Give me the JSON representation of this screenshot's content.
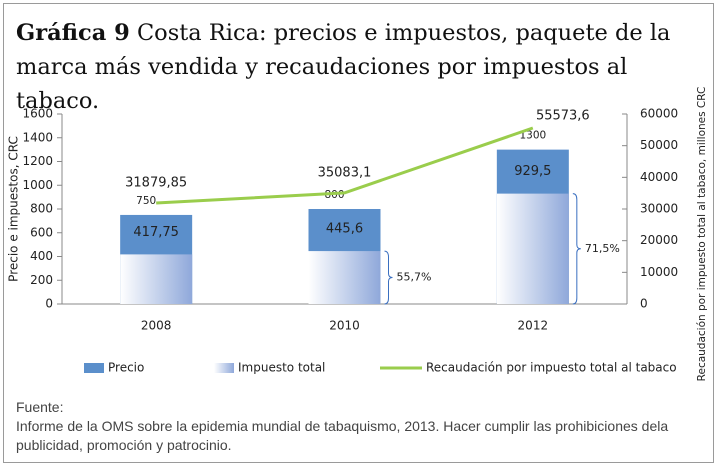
{
  "chart_data": {
    "type": "bar",
    "title_label": "Gráfica 9",
    "title": "Costa Rica: precios e impuestos, paquete de la marca más vendida y recaudaciones por impuestos al tabaco.",
    "y_label": "Precio e impuestos, CRC",
    "y2_label": "Recaudación por impuesto total al tabaco, millones CRC",
    "categories": [
      "2008",
      "2010",
      "2012"
    ],
    "series": [
      {
        "name": "Precio",
        "color": "#5b8fcb",
        "values": [
          750,
          800,
          1300
        ]
      },
      {
        "name": "Impuesto total",
        "color": "#8fa8da",
        "values": [
          417.75,
          445.6,
          929.5
        ],
        "value_labels": [
          "417,75",
          "445,6",
          "929,5"
        ]
      },
      {
        "name": "Recaudación por impuesto total al tabaco",
        "color": "#9acd4c",
        "axis": "y2",
        "type": "line",
        "values": [
          31879.85,
          35083.1,
          55573.6
        ],
        "value_labels": [
          "31879,85",
          "35083,1",
          "55573,6"
        ]
      }
    ],
    "annotations": [
      "55,7%",
      "71,5%"
    ],
    "ylim": [
      0,
      1600
    ],
    "yticks": [
      0,
      200,
      400,
      600,
      800,
      1000,
      1200,
      1400,
      1600
    ],
    "y2lim": [
      0,
      60000
    ],
    "y2ticks": [
      0,
      10000,
      20000,
      30000,
      40000,
      50000,
      60000
    ],
    "legend": "bottom"
  },
  "source": {
    "label": "Fuente:",
    "text": "Informe de la OMS sobre la epidemia mundial de tabaquismo, 2013. Hacer cumplir las prohibiciones dela publicidad, promoción y patrocinio."
  }
}
